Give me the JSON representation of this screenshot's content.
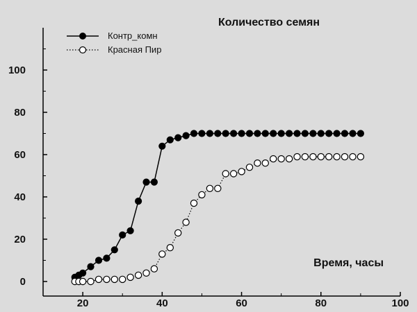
{
  "chart_data": {
    "type": "line",
    "title": "Количество семян",
    "xlabel": "Время, часы",
    "ylabel": "",
    "xlim": [
      10,
      100
    ],
    "ylim": [
      0,
      120
    ],
    "xticks": [
      20,
      40,
      60,
      80,
      100
    ],
    "yticks": [
      0,
      20,
      40,
      60,
      80,
      100
    ],
    "grid": false,
    "legend_position": "top-left",
    "series": [
      {
        "name": "Контр_комн",
        "marker": "filled-circle",
        "line": "solid",
        "color": "#000000",
        "x": [
          18,
          19,
          20,
          22,
          24,
          26,
          28,
          30,
          32,
          34,
          36,
          38,
          40,
          42,
          44,
          46,
          48,
          50,
          52,
          54,
          56,
          58,
          60,
          62,
          64,
          66,
          68,
          70,
          72,
          74,
          76,
          78,
          80,
          82,
          84,
          86,
          88,
          90
        ],
        "y": [
          2,
          3,
          4,
          7,
          10,
          11,
          15,
          22,
          24,
          38,
          47,
          47,
          64,
          67,
          68,
          69,
          70,
          70,
          70,
          70,
          70,
          70,
          70,
          70,
          70,
          70,
          70,
          70,
          70,
          70,
          70,
          70,
          70,
          70,
          70,
          70,
          70,
          70
        ]
      },
      {
        "name": "Красная Пир",
        "marker": "open-circle",
        "line": "dotted",
        "color": "#000000",
        "x": [
          18,
          19,
          20,
          22,
          24,
          26,
          28,
          30,
          32,
          34,
          36,
          38,
          40,
          42,
          44,
          46,
          48,
          50,
          52,
          54,
          56,
          58,
          60,
          62,
          64,
          66,
          68,
          70,
          72,
          74,
          76,
          78,
          80,
          82,
          84,
          86,
          88,
          90
        ],
        "y": [
          0,
          0,
          0,
          0,
          1,
          1,
          1,
          1,
          2,
          3,
          4,
          6,
          13,
          16,
          23,
          28,
          37,
          41,
          44,
          44,
          51,
          51,
          52,
          54,
          56,
          56,
          58,
          58,
          58,
          59,
          59,
          59,
          59,
          59,
          59,
          59,
          59,
          59
        ]
      }
    ]
  }
}
